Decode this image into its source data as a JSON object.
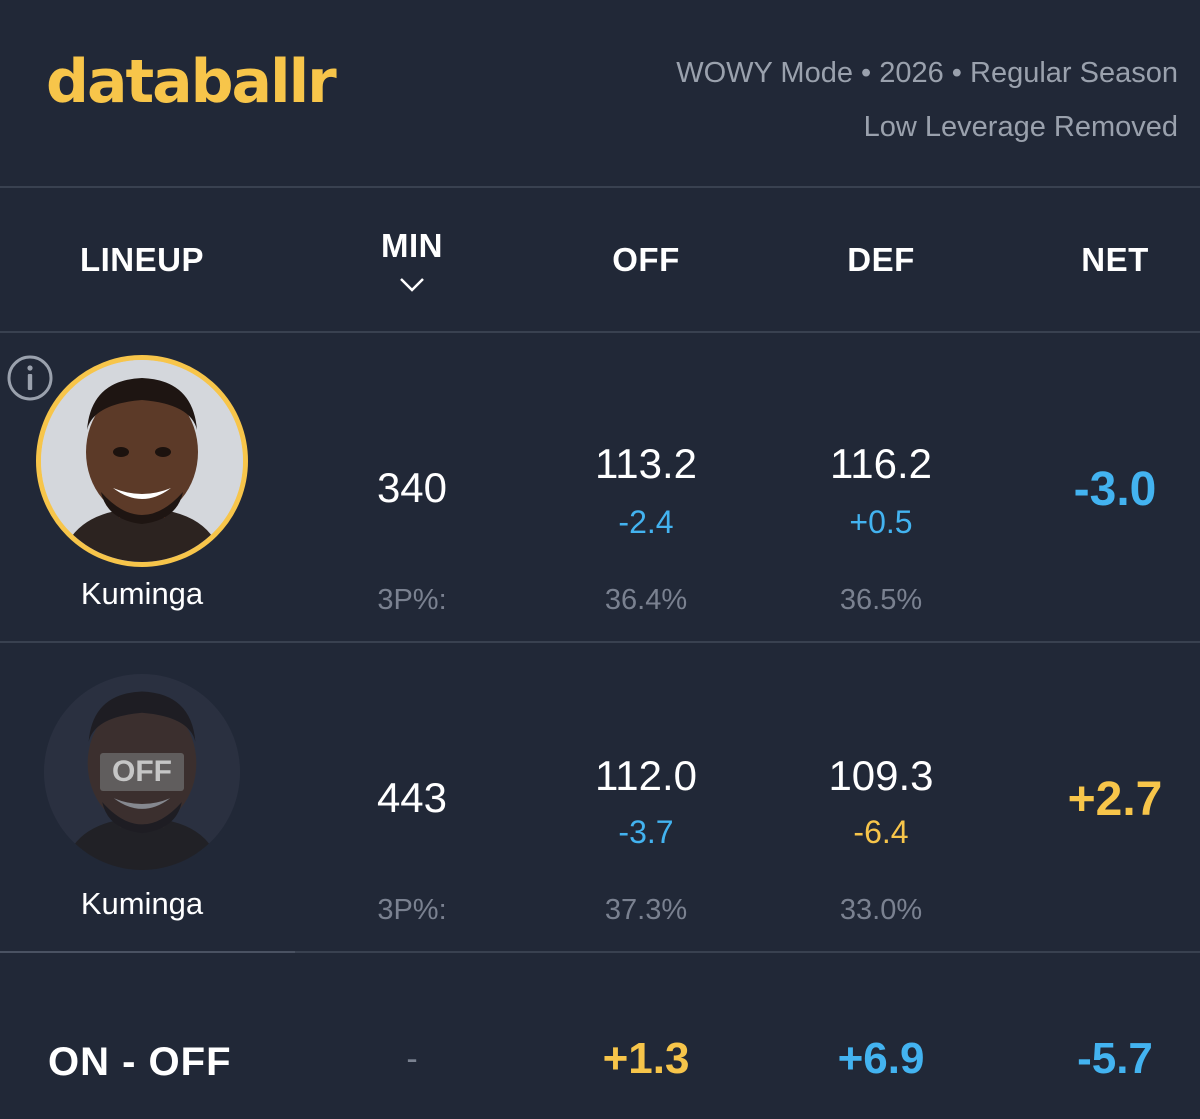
{
  "header": {
    "logo": "databallr",
    "mode_line": "WOWY Mode • 2026 • Regular Season",
    "filter_line": "Low Leverage Removed"
  },
  "columns": {
    "lineup": "LINEUP",
    "min": "MIN",
    "off": "OFF",
    "def": "DEF",
    "net": "NET"
  },
  "rows": [
    {
      "name": "Kuminga",
      "status": "on",
      "min": "340",
      "off": "113.2",
      "off_delta": "-2.4",
      "def": "116.2",
      "def_delta": "+0.5",
      "net": "-3.0",
      "threept_label": "3P%:",
      "off_3p": "36.4%",
      "def_3p": "36.5%"
    },
    {
      "name": "Kuminga",
      "status": "off",
      "off_badge": "OFF",
      "min": "443",
      "off": "112.0",
      "off_delta": "-3.7",
      "def": "109.3",
      "def_delta": "-6.4",
      "net": "+2.7",
      "threept_label": "3P%:",
      "off_3p": "37.3%",
      "def_3p": "33.0%"
    }
  ],
  "summary": {
    "label": "ON - OFF",
    "min": "-",
    "off": "+1.3",
    "def": "+6.9",
    "net": "-5.7"
  },
  "colors": {
    "background": "#212837",
    "gold": "#f7c54a",
    "blue": "#43b3f0",
    "muted": "#7a8190"
  },
  "icons": [
    "info-icon",
    "chevron-down-icon"
  ]
}
